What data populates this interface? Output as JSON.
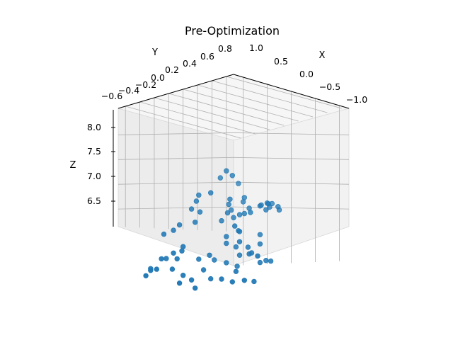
{
  "chart_data": {
    "type": "scatter3d",
    "title": "Pre-Optimization",
    "xlabel": "X",
    "ylabel": "Y",
    "zlabel": "Z",
    "xlim": [
      -1.2,
      1.2
    ],
    "ylim": [
      -0.7,
      0.9
    ],
    "zlim": [
      6.1,
      8.25
    ],
    "x_ticks": [
      "1.0",
      "0.5",
      "0.0",
      "−0.5",
      "−1.0"
    ],
    "y_ticks": [
      "−0.6",
      "−0.4",
      "−0.2",
      "0.0",
      "0.2",
      "0.4",
      "0.6",
      "0.8"
    ],
    "z_ticks": [
      "6.5",
      "7.0",
      "7.5",
      "8.0"
    ],
    "marker_color": "#1f77b4",
    "points_screen_order_note": "",
    "points": [
      [
        0.6,
        0.4,
        8.05
      ],
      [
        0.55,
        0.45,
        7.95
      ],
      [
        0.7,
        0.25,
        7.65
      ],
      [
        0.45,
        0.35,
        7.55
      ],
      [
        -0.1,
        0.05,
        7.3
      ],
      [
        -0.35,
        -0.05,
        7.1
      ],
      [
        -0.45,
        0.0,
        7.0
      ],
      [
        -0.55,
        0.1,
        7.05
      ],
      [
        -0.4,
        0.2,
        7.15
      ],
      [
        -0.6,
        -0.05,
        6.95
      ],
      [
        -0.7,
        -0.15,
        7.0
      ],
      [
        -0.85,
        -0.1,
        6.85
      ],
      [
        -0.75,
        0.05,
        6.8
      ],
      [
        -0.95,
        -0.2,
        7.05
      ],
      [
        -1.0,
        -0.05,
        6.9
      ],
      [
        -0.65,
        -0.3,
        6.7
      ],
      [
        0.1,
        0.25,
        7.05
      ],
      [
        0.05,
        0.2,
        7.1
      ],
      [
        0.15,
        0.1,
        7.0
      ],
      [
        0.0,
        0.0,
        6.95
      ],
      [
        -0.05,
        0.1,
        6.85
      ],
      [
        -0.2,
        0.05,
        6.75
      ],
      [
        -0.15,
        -0.1,
        6.65
      ],
      [
        -0.3,
        -0.05,
        6.6
      ],
      [
        0.2,
        -0.1,
        6.7
      ],
      [
        0.25,
        0.0,
        6.55
      ],
      [
        0.35,
        -0.15,
        6.6
      ],
      [
        0.1,
        -0.25,
        6.5
      ],
      [
        0.3,
        0.3,
        7.25
      ],
      [
        0.25,
        0.35,
        7.3
      ],
      [
        0.4,
        0.2,
        7.2
      ],
      [
        0.35,
        0.25,
        7.35
      ],
      [
        0.5,
        0.4,
        7.3
      ],
      [
        0.2,
        0.45,
        7.4
      ],
      [
        0.15,
        0.35,
        7.35
      ],
      [
        0.4,
        0.5,
        7.45
      ],
      [
        0.45,
        0.55,
        7.5
      ],
      [
        0.55,
        0.4,
        7.4
      ],
      [
        -0.05,
        0.6,
        7.5
      ],
      [
        0.1,
        0.55,
        7.45
      ],
      [
        0.8,
        0.1,
        7.1
      ],
      [
        0.85,
        0.2,
        7.25
      ],
      [
        0.95,
        0.15,
        7.3
      ],
      [
        1.0,
        0.25,
        7.4
      ],
      [
        -0.25,
        0.4,
        7.65
      ],
      [
        -0.2,
        0.45,
        7.6
      ],
      [
        -0.1,
        0.4,
        7.55
      ],
      [
        -0.15,
        0.5,
        7.5
      ],
      [
        -0.3,
        0.35,
        7.55
      ],
      [
        -0.05,
        0.3,
        7.45
      ],
      [
        -0.4,
        0.45,
        7.6
      ],
      [
        -0.35,
        0.5,
        7.5
      ],
      [
        0.6,
        -0.2,
        6.8
      ],
      [
        0.55,
        -0.25,
        6.75
      ],
      [
        0.65,
        -0.3,
        6.7
      ],
      [
        0.5,
        -0.35,
        6.65
      ],
      [
        0.75,
        -0.4,
        6.6
      ],
      [
        0.8,
        -0.3,
        6.55
      ],
      [
        0.45,
        -0.45,
        6.5
      ],
      [
        0.7,
        -0.5,
        6.45
      ],
      [
        0.3,
        -0.4,
        6.4
      ],
      [
        0.9,
        -0.45,
        6.35
      ],
      [
        0.85,
        -0.55,
        6.3
      ],
      [
        1.05,
        -0.35,
        6.3
      ],
      [
        -1.05,
        -0.45,
        6.7
      ],
      [
        -1.1,
        -0.35,
        6.65
      ],
      [
        -0.8,
        -0.45,
        6.6
      ],
      [
        -0.5,
        -0.4,
        6.55
      ],
      [
        -0.2,
        -0.35,
        6.45
      ],
      [
        0.05,
        -0.45,
        6.4
      ],
      [
        0.15,
        -0.55,
        6.35
      ],
      [
        -0.1,
        -0.5,
        6.3
      ],
      [
        1.1,
        0.0,
        6.9
      ],
      [
        1.15,
        -0.1,
        6.85
      ],
      [
        1.05,
        0.05,
        7.0
      ],
      [
        1.1,
        0.35,
        7.45
      ],
      [
        0.65,
        0.6,
        7.7
      ],
      [
        0.95,
        0.55,
        7.75
      ]
    ]
  }
}
